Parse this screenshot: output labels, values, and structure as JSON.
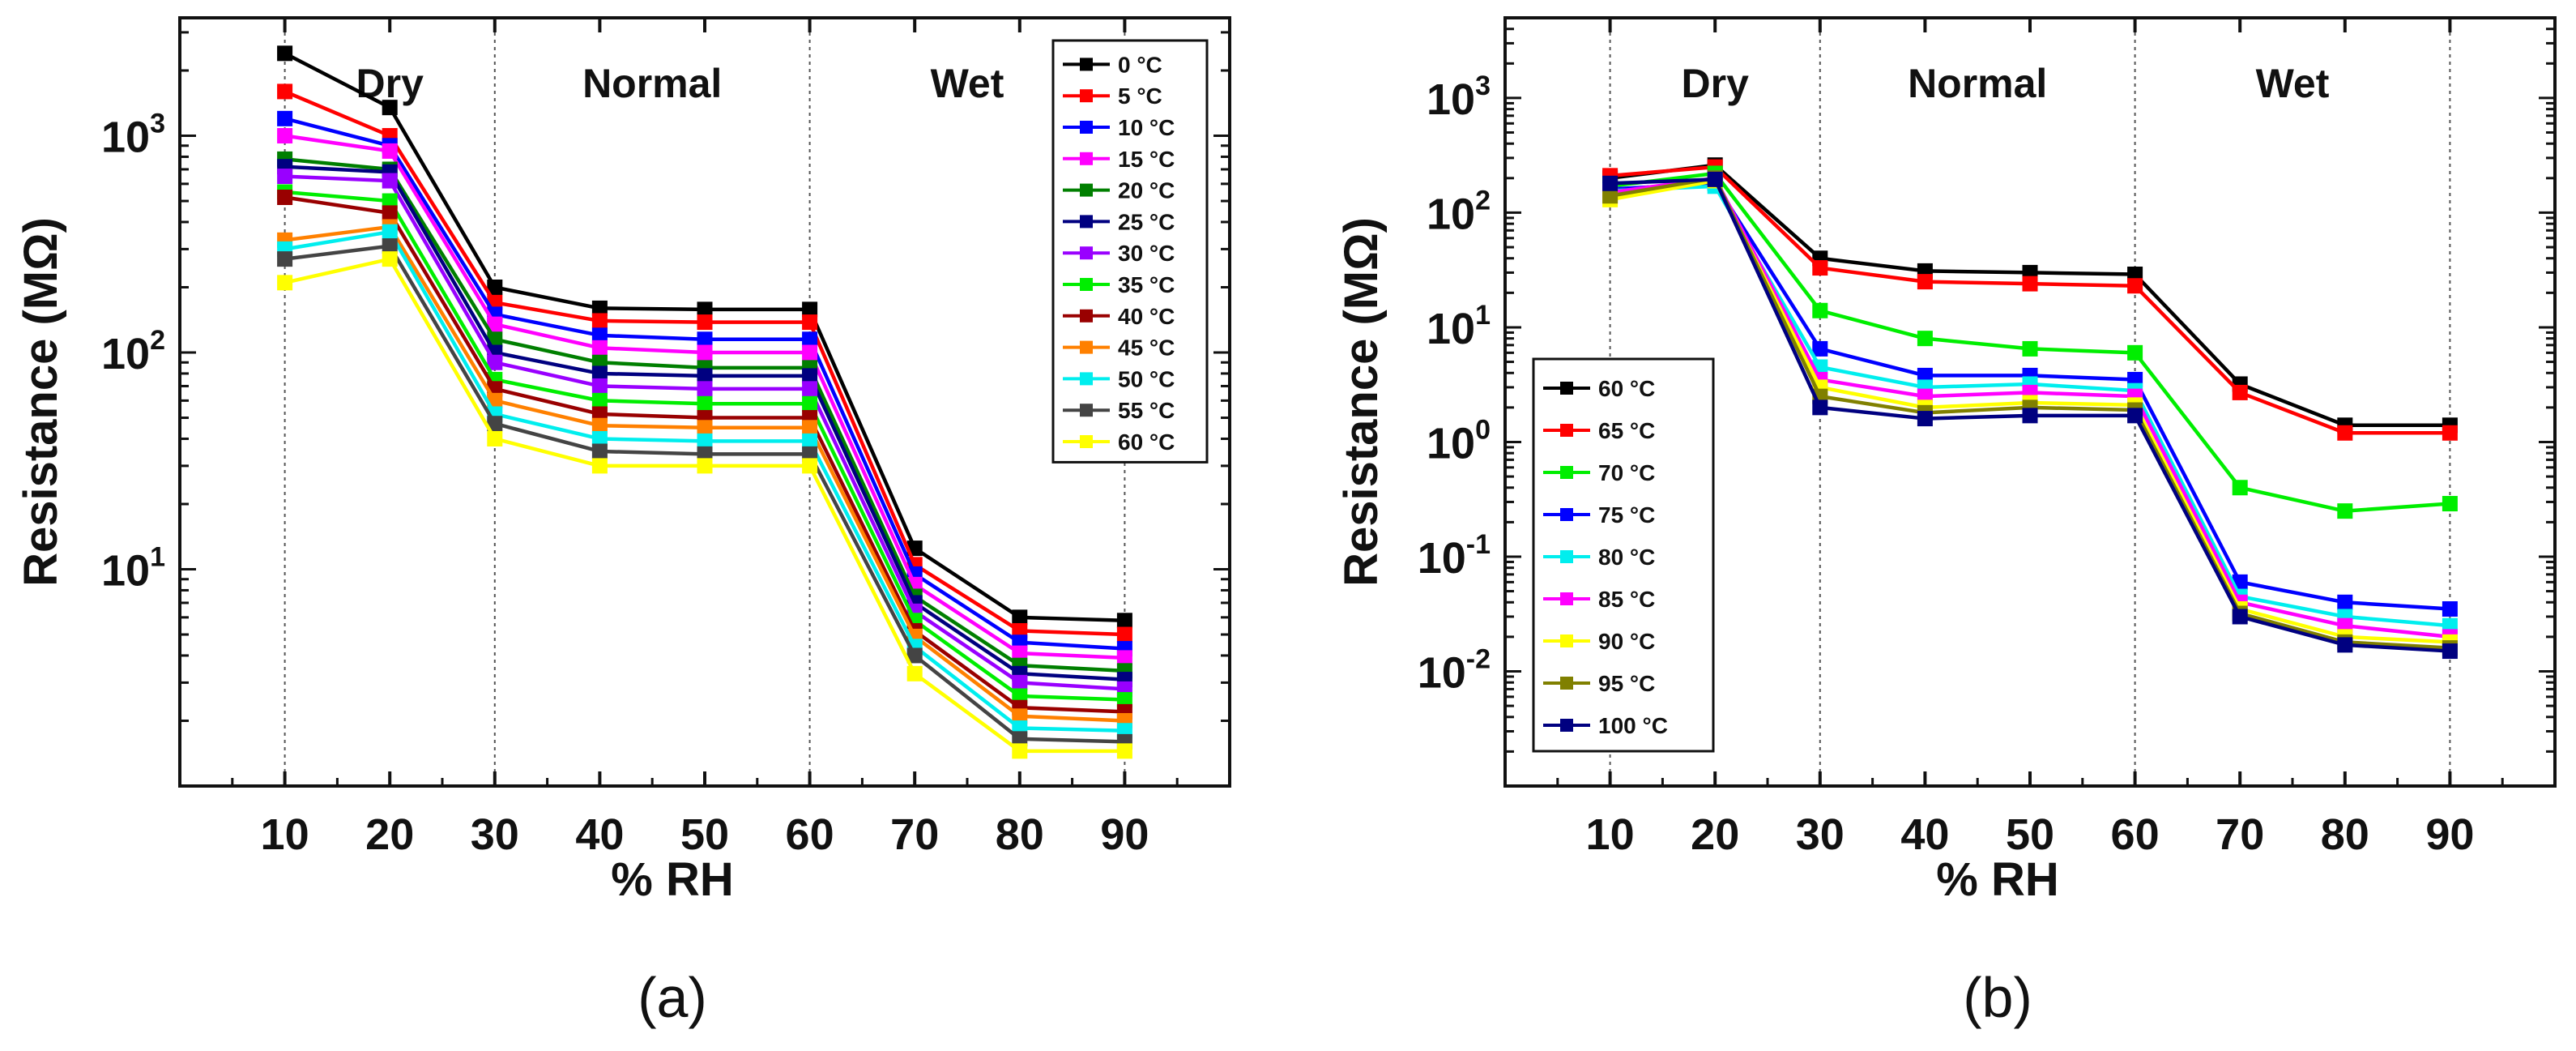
{
  "chart_data": [
    {
      "type": "line",
      "panel_label": "(a)",
      "xlabel": "% RH",
      "ylabel": "Resistance (MΩ)",
      "yscale": "log",
      "ylim": [
        1,
        3500
      ],
      "yticks": [
        {
          "value": 10,
          "base": "10",
          "exp": "1"
        },
        {
          "value": 100,
          "base": "10",
          "exp": "2"
        },
        {
          "value": 1000,
          "base": "10",
          "exp": "3"
        }
      ],
      "x": [
        10,
        20,
        30,
        40,
        50,
        60,
        70,
        80,
        90
      ],
      "xticks": [
        "10",
        "20",
        "30",
        "40",
        "50",
        "60",
        "70",
        "80",
        "90"
      ],
      "regions": [
        {
          "label": "Dry",
          "x": 20
        },
        {
          "label": "Normal",
          "x": 45
        },
        {
          "label": "Wet",
          "x": 75
        }
      ],
      "dividers": [
        10,
        30,
        60,
        90
      ],
      "legend_position": "top-right",
      "series": [
        {
          "name": "0 °C",
          "color": "#000000",
          "values": [
            2400,
            1350,
            200,
            160,
            158,
            158,
            12.5,
            6.0,
            5.8
          ]
        },
        {
          "name": "5 °C",
          "color": "#ff0000",
          "values": [
            1600,
            1000,
            170,
            140,
            138,
            138,
            10.5,
            5.2,
            5.0
          ]
        },
        {
          "name": "10 °C",
          "color": "#0000ff",
          "values": [
            1200,
            900,
            150,
            120,
            115,
            115,
            9.5,
            4.6,
            4.3
          ]
        },
        {
          "name": "15 °C",
          "color": "#ff00ff",
          "values": [
            1000,
            850,
            135,
            105,
            100,
            100,
            8.5,
            4.1,
            3.9
          ]
        },
        {
          "name": "20 °C",
          "color": "#007f00",
          "values": [
            780,
            700,
            115,
            90,
            85,
            85,
            7.5,
            3.6,
            3.4
          ]
        },
        {
          "name": "25 °C",
          "color": "#000080",
          "values": [
            720,
            680,
            100,
            80,
            78,
            78,
            7.0,
            3.3,
            3.1
          ]
        },
        {
          "name": "30 °C",
          "color": "#9900ff",
          "values": [
            650,
            620,
            90,
            70,
            68,
            68,
            6.4,
            3.0,
            2.8
          ]
        },
        {
          "name": "35 °C",
          "color": "#00ee00",
          "values": [
            550,
            500,
            75,
            60,
            58,
            58,
            5.8,
            2.6,
            2.5
          ]
        },
        {
          "name": "40 °C",
          "color": "#990000",
          "values": [
            520,
            440,
            68,
            52,
            50,
            50,
            5.2,
            2.3,
            2.2
          ]
        },
        {
          "name": "45 °C",
          "color": "#ff8000",
          "values": [
            330,
            380,
            60,
            46,
            45,
            45,
            4.9,
            2.1,
            2.0
          ]
        },
        {
          "name": "50 °C",
          "color": "#00eeee",
          "values": [
            300,
            360,
            52,
            40,
            39,
            39,
            4.4,
            1.85,
            1.8
          ]
        },
        {
          "name": "55 °C",
          "color": "#444444",
          "values": [
            270,
            310,
            47,
            35,
            34,
            34,
            4.0,
            1.65,
            1.6
          ]
        },
        {
          "name": "60 °C",
          "color": "#ffff00",
          "values": [
            210,
            270,
            40,
            30,
            30,
            30,
            3.3,
            1.45,
            1.45
          ]
        }
      ]
    },
    {
      "type": "line",
      "panel_label": "(b)",
      "xlabel": "% RH",
      "ylabel": "Resistance (MΩ)",
      "yscale": "log",
      "ylim": [
        0.001,
        5000
      ],
      "yticks": [
        {
          "value": 0.01,
          "base": "10",
          "exp": "-2"
        },
        {
          "value": 0.1,
          "base": "10",
          "exp": "-1"
        },
        {
          "value": 1,
          "base": "10",
          "exp": "0"
        },
        {
          "value": 10,
          "base": "10",
          "exp": "1"
        },
        {
          "value": 100,
          "base": "10",
          "exp": "2"
        },
        {
          "value": 1000,
          "base": "10",
          "exp": "3"
        }
      ],
      "x": [
        10,
        20,
        30,
        40,
        50,
        60,
        70,
        80,
        90
      ],
      "xticks": [
        "10",
        "20",
        "30",
        "40",
        "50",
        "60",
        "70",
        "80",
        "90"
      ],
      "regions": [
        {
          "label": "Dry",
          "x": 20
        },
        {
          "label": "Normal",
          "x": 45
        },
        {
          "label": "Wet",
          "x": 75
        }
      ],
      "dividers": [
        10,
        30,
        60,
        90
      ],
      "legend_position": "bottom-left",
      "series": [
        {
          "name": "60 °C",
          "color": "#000000",
          "values": [
            200,
            260,
            40,
            31,
            30,
            29,
            3.2,
            1.4,
            1.4
          ]
        },
        {
          "name": "65 °C",
          "color": "#ff0000",
          "values": [
            210,
            250,
            33,
            25,
            24,
            23,
            2.7,
            1.2,
            1.2
          ]
        },
        {
          "name": "70 °C",
          "color": "#00ee00",
          "values": [
            170,
            220,
            14,
            8,
            6.5,
            6,
            0.4,
            0.25,
            0.29
          ]
        },
        {
          "name": "75 °C",
          "color": "#0000ff",
          "values": [
            160,
            180,
            6.5,
            3.8,
            3.8,
            3.5,
            0.06,
            0.04,
            0.035
          ]
        },
        {
          "name": "80 °C",
          "color": "#00eeee",
          "values": [
            155,
            170,
            4.5,
            3.0,
            3.2,
            2.8,
            0.045,
            0.03,
            0.025
          ]
        },
        {
          "name": "85 °C",
          "color": "#ff00ff",
          "values": [
            150,
            200,
            3.5,
            2.5,
            2.7,
            2.5,
            0.04,
            0.025,
            0.02
          ]
        },
        {
          "name": "90 °C",
          "color": "#ffff00",
          "values": [
            130,
            190,
            3.0,
            2.0,
            2.2,
            2.1,
            0.035,
            0.02,
            0.018
          ]
        },
        {
          "name": "95 °C",
          "color": "#808000",
          "values": [
            140,
            200,
            2.5,
            1.8,
            2.0,
            1.9,
            0.032,
            0.018,
            0.016
          ]
        },
        {
          "name": "100 °C",
          "color": "#000080",
          "values": [
            180,
            195,
            2.0,
            1.6,
            1.7,
            1.7,
            0.03,
            0.017,
            0.015
          ]
        }
      ]
    }
  ]
}
